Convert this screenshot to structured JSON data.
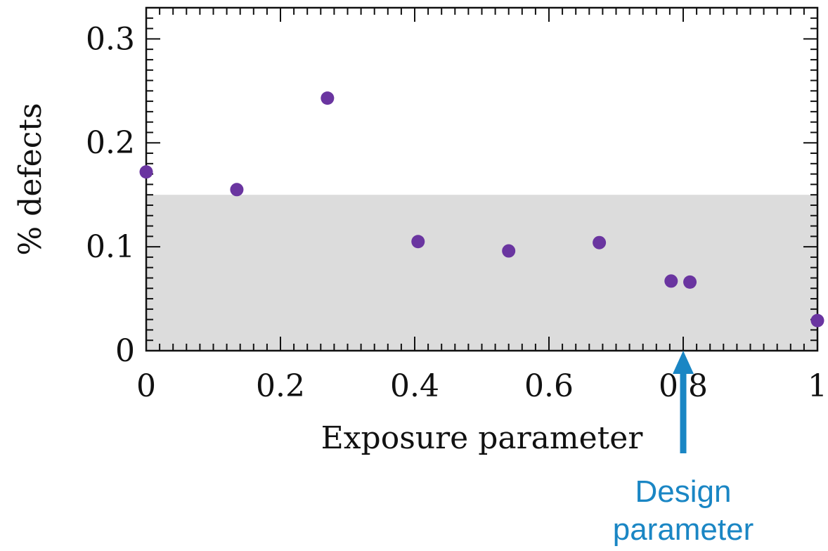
{
  "chart_data": {
    "type": "scatter",
    "title": "",
    "xlabel": "Exposure parameter",
    "ylabel": "% defects",
    "xlim": [
      0,
      1
    ],
    "ylim": [
      0,
      0.33
    ],
    "x_ticks": [
      0,
      0.2,
      0.4,
      0.6,
      0.8,
      1
    ],
    "x_tick_labels": [
      "0",
      "0.2",
      "0.4",
      "0.6",
      "0.8",
      "1"
    ],
    "y_ticks": [
      0,
      0.1,
      0.2,
      0.3
    ],
    "y_tick_labels": [
      "0",
      "0.1",
      "0.2",
      "0.3"
    ],
    "grid": false,
    "series": [
      {
        "color": "#6a35a0",
        "points": [
          {
            "x": 0.0,
            "y": 0.172
          },
          {
            "x": 0.135,
            "y": 0.155
          },
          {
            "x": 0.27,
            "y": 0.243
          },
          {
            "x": 0.405,
            "y": 0.105
          },
          {
            "x": 0.54,
            "y": 0.096
          },
          {
            "x": 0.675,
            "y": 0.104
          },
          {
            "x": 0.782,
            "y": 0.067
          },
          {
            "x": 0.81,
            "y": 0.066
          },
          {
            "x": 1.0,
            "y": 0.029
          }
        ]
      }
    ],
    "shaded_band": {
      "y_from": 0,
      "y_to": 0.15,
      "color": "#dcdcdc"
    },
    "annotation": {
      "text_lines": [
        "Design",
        "parameter"
      ],
      "x": 0.8,
      "color": "#1a86c4"
    }
  }
}
